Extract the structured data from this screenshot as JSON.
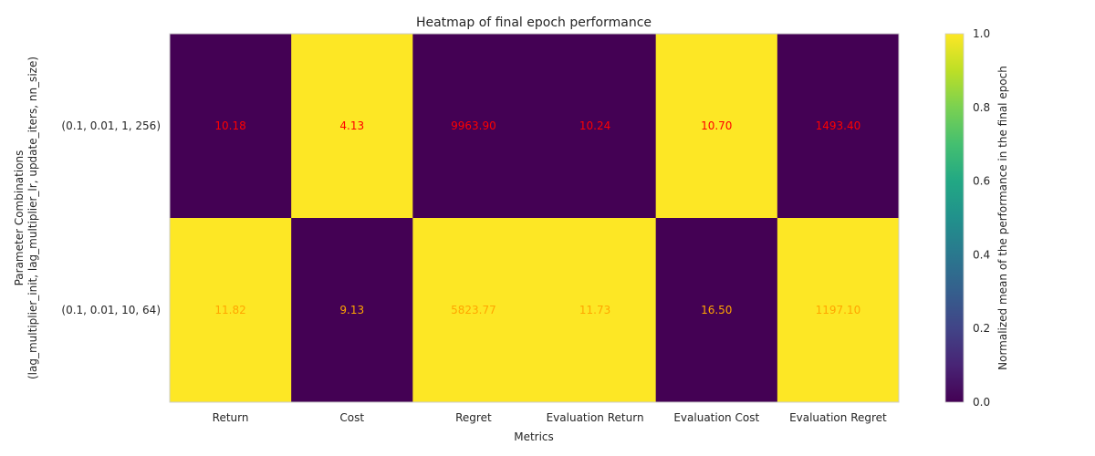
{
  "chart_data": {
    "type": "heatmap",
    "title": "Heatmap of final epoch performance",
    "xlabel": "Metrics",
    "ylabel_lines": [
      "Parameter Combinations",
      "(lag_multiplier_init, lag_multiplier_lr, update_iters, nn_size)"
    ],
    "columns": [
      "Return",
      "Cost",
      "Regret",
      "Evaluation Return",
      "Evaluation Cost",
      "Evaluation Regret"
    ],
    "rows": [
      {
        "label": "(0.1, 0.01, 1, 256)",
        "normalized": [
          0,
          1,
          0,
          0,
          1,
          0
        ],
        "annotations": [
          "10.18",
          "4.13",
          "9963.90",
          "10.24",
          "10.70",
          "1493.40"
        ],
        "annotation_color": "#ff0000"
      },
      {
        "label": "(0.1, 0.01, 10, 64)",
        "normalized": [
          1,
          0,
          1,
          1,
          0,
          1
        ],
        "annotations": [
          "11.82",
          "9.13",
          "5823.77",
          "11.73",
          "16.50",
          "1197.10"
        ],
        "annotation_color": "#ffa500"
      }
    ],
    "colormap": "viridis",
    "colorbar": {
      "label": "Normalized mean of the performance in the final epoch",
      "range": [
        0,
        1
      ],
      "ticks": [
        "0.0",
        "0.2",
        "0.4",
        "0.6",
        "0.8",
        "1.0"
      ]
    },
    "grid": false
  },
  "colors": {
    "low": "#440154",
    "high": "#fde725"
  }
}
